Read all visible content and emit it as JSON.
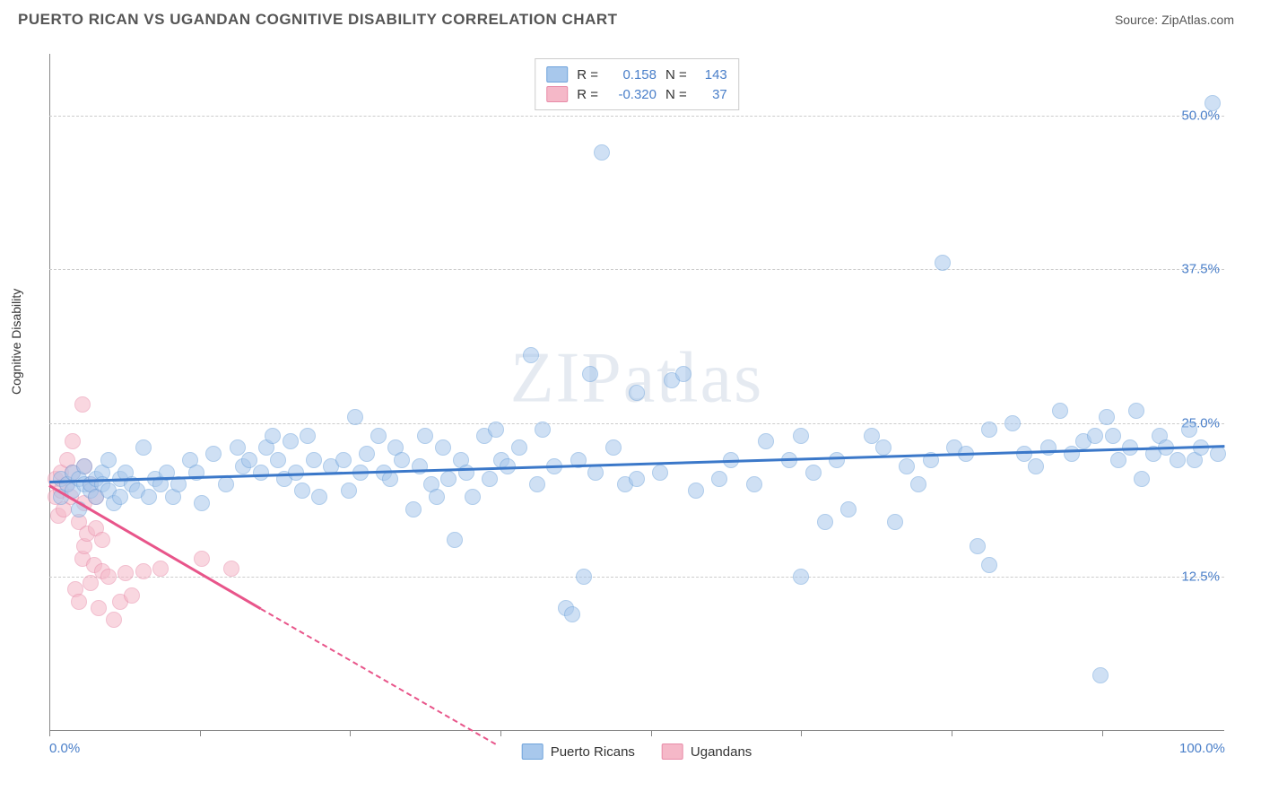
{
  "title": "PUERTO RICAN VS UGANDAN COGNITIVE DISABILITY CORRELATION CHART",
  "source_label": "Source: ZipAtlas.com",
  "ylabel": "Cognitive Disability",
  "watermark": "ZIPatlas",
  "chart": {
    "type": "scatter",
    "xlim": [
      0,
      100
    ],
    "ylim": [
      0,
      55
    ],
    "ytick_values": [
      12.5,
      25.0,
      37.5,
      50.0
    ],
    "ytick_labels": [
      "12.5%",
      "25.0%",
      "37.5%",
      "50.0%"
    ],
    "xtick_values": [
      0,
      100
    ],
    "xtick_labels": [
      "0.0%",
      "100.0%"
    ],
    "xtick_marks": [
      0,
      12.8,
      25.6,
      38.4,
      51.2,
      64.0,
      76.8,
      89.6
    ],
    "grid_color": "#cccccc",
    "background_color": "#ffffff",
    "marker_radius": 9,
    "series": {
      "blue": {
        "name": "Puerto Ricans",
        "fill": "#a8c8ec",
        "stroke": "#6fa3db",
        "r_value": "0.158",
        "n_value": "143",
        "trend": {
          "x1": 0,
          "y1": 20.3,
          "x2": 100,
          "y2": 23.2,
          "color": "#3b78c9",
          "dashed_after": 100
        },
        "points": [
          [
            1,
            20.5
          ],
          [
            1,
            19
          ],
          [
            1.5,
            20
          ],
          [
            2,
            19.5
          ],
          [
            2,
            21
          ],
          [
            2.5,
            20.5
          ],
          [
            2.5,
            18
          ],
          [
            3,
            20
          ],
          [
            3,
            21.5
          ],
          [
            3.5,
            19.5
          ],
          [
            3.5,
            20
          ],
          [
            4,
            20.5
          ],
          [
            4,
            19
          ],
          [
            4.5,
            21
          ],
          [
            4.5,
            20
          ],
          [
            5,
            19.5
          ],
          [
            5,
            22
          ],
          [
            5.5,
            18.5
          ],
          [
            6,
            20.5
          ],
          [
            6,
            19
          ],
          [
            6.5,
            21
          ],
          [
            7,
            20
          ],
          [
            7.5,
            19.5
          ],
          [
            8,
            23
          ],
          [
            8.5,
            19
          ],
          [
            9,
            20.5
          ],
          [
            9.5,
            20
          ],
          [
            10,
            21
          ],
          [
            10.5,
            19
          ],
          [
            11,
            20
          ],
          [
            12,
            22
          ],
          [
            12.5,
            21
          ],
          [
            13,
            18.5
          ],
          [
            14,
            22.5
          ],
          [
            15,
            20
          ],
          [
            16,
            23
          ],
          [
            16.5,
            21.5
          ],
          [
            17,
            22
          ],
          [
            18,
            21
          ],
          [
            18.5,
            23
          ],
          [
            19,
            24
          ],
          [
            19.5,
            22
          ],
          [
            20,
            20.5
          ],
          [
            20.5,
            23.5
          ],
          [
            21,
            21
          ],
          [
            21.5,
            19.5
          ],
          [
            22,
            24
          ],
          [
            22.5,
            22
          ],
          [
            23,
            19
          ],
          [
            24,
            21.5
          ],
          [
            25,
            22
          ],
          [
            25.5,
            19.5
          ],
          [
            26,
            25.5
          ],
          [
            26.5,
            21
          ],
          [
            27,
            22.5
          ],
          [
            28,
            24
          ],
          [
            28.5,
            21
          ],
          [
            29,
            20.5
          ],
          [
            29.5,
            23
          ],
          [
            30,
            22
          ],
          [
            31,
            18
          ],
          [
            31.5,
            21.5
          ],
          [
            32,
            24
          ],
          [
            32.5,
            20
          ],
          [
            33,
            19
          ],
          [
            33.5,
            23
          ],
          [
            34,
            20.5
          ],
          [
            34.5,
            15.5
          ],
          [
            35,
            22
          ],
          [
            35.5,
            21
          ],
          [
            36,
            19
          ],
          [
            37,
            24
          ],
          [
            37.5,
            20.5
          ],
          [
            38,
            24.5
          ],
          [
            38.5,
            22
          ],
          [
            39,
            21.5
          ],
          [
            40,
            23
          ],
          [
            41,
            30.5
          ],
          [
            41.5,
            20
          ],
          [
            42,
            24.5
          ],
          [
            43,
            21.5
          ],
          [
            44,
            10
          ],
          [
            44.5,
            9.5
          ],
          [
            45,
            22
          ],
          [
            45.5,
            12.5
          ],
          [
            46,
            29
          ],
          [
            46.5,
            21
          ],
          [
            47,
            47
          ],
          [
            48,
            23
          ],
          [
            49,
            20
          ],
          [
            50,
            27.5
          ],
          [
            50,
            20.5
          ],
          [
            52,
            21
          ],
          [
            53,
            28.5
          ],
          [
            54,
            29
          ],
          [
            55,
            19.5
          ],
          [
            57,
            20.5
          ],
          [
            58,
            22
          ],
          [
            60,
            20
          ],
          [
            61,
            23.5
          ],
          [
            63,
            22
          ],
          [
            64,
            24
          ],
          [
            64,
            12.5
          ],
          [
            65,
            21
          ],
          [
            66,
            17
          ],
          [
            67,
            22
          ],
          [
            68,
            18
          ],
          [
            70,
            24
          ],
          [
            71,
            23
          ],
          [
            72,
            17
          ],
          [
            73,
            21.5
          ],
          [
            74,
            20
          ],
          [
            75,
            22
          ],
          [
            76,
            38
          ],
          [
            77,
            23
          ],
          [
            78,
            22.5
          ],
          [
            79,
            15
          ],
          [
            80,
            24.5
          ],
          [
            80,
            13.5
          ],
          [
            82,
            25
          ],
          [
            83,
            22.5
          ],
          [
            84,
            21.5
          ],
          [
            85,
            23
          ],
          [
            86,
            26
          ],
          [
            87,
            22.5
          ],
          [
            88,
            23.5
          ],
          [
            89,
            24
          ],
          [
            89.5,
            4.5
          ],
          [
            90,
            25.5
          ],
          [
            90.5,
            24
          ],
          [
            91,
            22
          ],
          [
            92,
            23
          ],
          [
            92.5,
            26
          ],
          [
            93,
            20.5
          ],
          [
            94,
            22.5
          ],
          [
            94.5,
            24
          ],
          [
            95,
            23
          ],
          [
            96,
            22
          ],
          [
            97,
            24.5
          ],
          [
            97.5,
            22
          ],
          [
            98,
            23
          ],
          [
            99,
            51
          ],
          [
            99.5,
            22.5
          ]
        ]
      },
      "pink": {
        "name": "Ugandans",
        "fill": "#f5b8c8",
        "stroke": "#e88ba8",
        "r_value": "-0.320",
        "n_value": "37",
        "trend": {
          "x1": 0,
          "y1": 20,
          "x2": 18,
          "y2": 10,
          "x3": 38,
          "y3": -1,
          "color": "#e8558a",
          "dashed_after": 18
        },
        "points": [
          [
            0.5,
            19
          ],
          [
            0.5,
            20.5
          ],
          [
            0.8,
            17.5
          ],
          [
            1,
            19.5
          ],
          [
            1,
            21
          ],
          [
            1.2,
            18
          ],
          [
            1.5,
            22
          ],
          [
            1.5,
            20
          ],
          [
            1.8,
            19
          ],
          [
            2,
            23.5
          ],
          [
            2,
            21
          ],
          [
            2.2,
            11.5
          ],
          [
            2.5,
            10.5
          ],
          [
            2.5,
            17
          ],
          [
            2.8,
            14
          ],
          [
            2.8,
            26.5
          ],
          [
            3,
            21.5
          ],
          [
            3,
            18.5
          ],
          [
            3,
            15
          ],
          [
            3.2,
            16
          ],
          [
            3.5,
            12
          ],
          [
            3.5,
            20
          ],
          [
            3.8,
            13.5
          ],
          [
            4,
            16.5
          ],
          [
            4,
            19
          ],
          [
            4.2,
            10
          ],
          [
            4.5,
            13
          ],
          [
            4.5,
            15.5
          ],
          [
            5,
            12.5
          ],
          [
            5.5,
            9
          ],
          [
            6,
            10.5
          ],
          [
            6.5,
            12.8
          ],
          [
            7,
            11
          ],
          [
            8,
            13
          ],
          [
            9.5,
            13.2
          ],
          [
            13,
            14
          ],
          [
            15.5,
            13.2
          ]
        ]
      }
    }
  },
  "colors": {
    "blue_text": "#4a7fc9",
    "pink_text": "#555"
  },
  "legend_labels": {
    "r_prefix": "R =",
    "n_prefix": "N ="
  }
}
